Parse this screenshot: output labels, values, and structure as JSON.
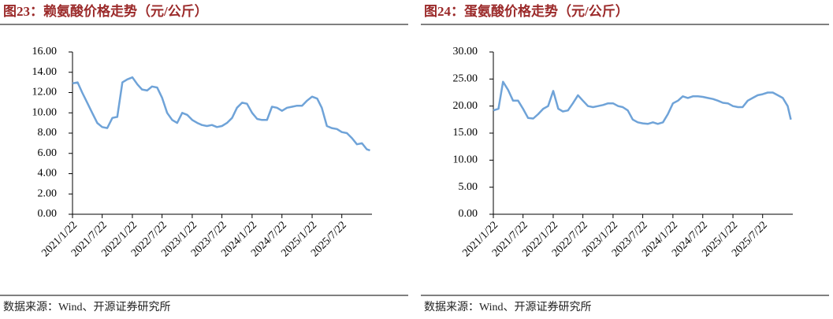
{
  "chart_data": [
    {
      "type": "line",
      "title": "图23：赖氨酸价格走势（元/公斤）",
      "source": "数据来源：Wind、开源证券研究所",
      "color": "#6fa3d8",
      "x": [
        "2021/1/22",
        "2021/2/22",
        "2021/3/22",
        "2021/4/22",
        "2021/5/22",
        "2021/6/22",
        "2021/7/22",
        "2021/8/22",
        "2021/9/22",
        "2021/10/22",
        "2021/11/22",
        "2021/12/22",
        "2022/1/22",
        "2022/2/22",
        "2022/3/22",
        "2022/4/22",
        "2022/5/22",
        "2022/6/22",
        "2022/7/22",
        "2022/8/22",
        "2022/9/22",
        "2022/10/22",
        "2022/11/22",
        "2022/12/22",
        "2023/1/22",
        "2023/2/22",
        "2023/3/22",
        "2023/4/22",
        "2023/5/22",
        "2023/6/22",
        "2023/7/22",
        "2023/8/22",
        "2023/9/22",
        "2023/10/22",
        "2023/11/22",
        "2023/12/22",
        "2024/1/22",
        "2024/2/22",
        "2024/3/22",
        "2024/4/22",
        "2024/5/22",
        "2024/6/22",
        "2024/7/22",
        "2024/8/22",
        "2024/9/22",
        "2024/10/22",
        "2024/11/22",
        "2024/12/22",
        "2025/1/22",
        "2025/2/22",
        "2025/3/22",
        "2025/4/22",
        "2025/5/22",
        "2025/6/22",
        "2025/7/22",
        "2025/8/22",
        "2025/9/22",
        "2025/10/22",
        "2025/11/22",
        "2025/12/22",
        "2026/1/10"
      ],
      "values": [
        12.9,
        13.0,
        12.0,
        11.0,
        10.0,
        9.0,
        8.6,
        8.5,
        9.5,
        9.6,
        13.0,
        13.3,
        13.5,
        12.8,
        12.3,
        12.2,
        12.6,
        12.5,
        11.5,
        10.0,
        9.3,
        9.0,
        10.0,
        9.8,
        9.3,
        9.0,
        8.8,
        8.7,
        8.8,
        8.6,
        8.7,
        9.0,
        9.5,
        10.5,
        11.0,
        10.9,
        10.0,
        9.4,
        9.3,
        9.3,
        10.6,
        10.5,
        10.2,
        10.5,
        10.6,
        10.7,
        10.7,
        11.2,
        11.6,
        11.4,
        10.5,
        8.7,
        8.5,
        8.4,
        8.1,
        8.0,
        7.5,
        6.9,
        7.0,
        6.4,
        6.3
      ],
      "xlim": [
        "2021/1/22",
        "2026/1/22"
      ],
      "xticks": [
        "2021/1/22",
        "2021/7/22",
        "2022/1/22",
        "2022/7/22",
        "2023/1/22",
        "2023/7/22",
        "2024/1/22",
        "2024/7/22",
        "2025/1/22",
        "2025/7/22"
      ],
      "ylim": [
        0,
        16
      ],
      "yticks": [
        {
          "value": 0,
          "label": "0.00"
        },
        {
          "value": 2,
          "label": "2.00"
        },
        {
          "value": 4,
          "label": "4.00"
        },
        {
          "value": 6,
          "label": "6.00"
        },
        {
          "value": 8,
          "label": "8.00"
        },
        {
          "value": 10,
          "label": "10.00"
        },
        {
          "value": 12,
          "label": "12.00"
        },
        {
          "value": 14,
          "label": "14.00"
        },
        {
          "value": 16,
          "label": "16.00"
        }
      ]
    },
    {
      "type": "line",
      "title": "图24：蛋氨酸价格走势（元/公斤）",
      "source": "数据来源：Wind、开源证券研究所",
      "color": "#6fa3d8",
      "x": [
        "2021/1/22",
        "2021/2/22",
        "2021/3/22",
        "2021/4/22",
        "2021/5/22",
        "2021/6/22",
        "2021/7/22",
        "2021/8/22",
        "2021/9/22",
        "2021/10/22",
        "2021/11/22",
        "2021/12/22",
        "2022/1/22",
        "2022/2/22",
        "2022/3/22",
        "2022/4/22",
        "2022/5/22",
        "2022/6/22",
        "2022/7/22",
        "2022/8/22",
        "2022/9/22",
        "2022/10/22",
        "2022/11/22",
        "2022/12/22",
        "2023/1/22",
        "2023/2/22",
        "2023/3/22",
        "2023/4/22",
        "2023/5/22",
        "2023/6/22",
        "2023/7/22",
        "2023/8/22",
        "2023/9/22",
        "2023/10/22",
        "2023/11/22",
        "2023/12/22",
        "2024/1/22",
        "2024/2/22",
        "2024/3/22",
        "2024/4/22",
        "2024/5/22",
        "2024/6/22",
        "2024/7/22",
        "2024/8/22",
        "2024/9/22",
        "2024/10/22",
        "2024/11/22",
        "2024/12/22",
        "2025/1/22",
        "2025/2/22",
        "2025/3/22",
        "2025/4/22",
        "2025/5/22",
        "2025/6/22",
        "2025/7/22",
        "2025/8/22",
        "2025/9/22",
        "2025/10/22",
        "2025/11/22",
        "2025/12/22",
        "2026/1/10"
      ],
      "values": [
        19.2,
        19.5,
        24.5,
        23.0,
        21.0,
        21.0,
        19.5,
        17.8,
        17.7,
        18.5,
        19.5,
        20.0,
        22.8,
        19.5,
        19.0,
        19.2,
        20.5,
        22.0,
        21.0,
        20.0,
        19.8,
        20.0,
        20.2,
        20.5,
        20.5,
        20.0,
        19.8,
        19.2,
        17.5,
        17.0,
        16.8,
        16.7,
        17.0,
        16.7,
        17.0,
        18.5,
        20.5,
        21.0,
        21.8,
        21.5,
        21.8,
        21.8,
        21.7,
        21.5,
        21.3,
        21.0,
        20.6,
        20.5,
        20.0,
        19.8,
        19.8,
        21.0,
        21.5,
        22.0,
        22.2,
        22.5,
        22.5,
        22.0,
        21.5,
        20.0,
        17.5
      ],
      "xlim": [
        "2021/1/22",
        "2026/1/22"
      ],
      "xticks": [
        "2021/1/22",
        "2021/7/22",
        "2022/1/22",
        "2022/7/22",
        "2023/1/22",
        "2023/7/22",
        "2024/1/22",
        "2024/7/22",
        "2025/1/22",
        "2025/7/22"
      ],
      "ylim": [
        0,
        30
      ],
      "yticks": [
        {
          "value": 0,
          "label": "0.00"
        },
        {
          "value": 5,
          "label": "5.00"
        },
        {
          "value": 10,
          "label": "10.00"
        },
        {
          "value": 15,
          "label": "15.00"
        },
        {
          "value": 20,
          "label": "20.00"
        },
        {
          "value": 25,
          "label": "25.00"
        },
        {
          "value": 30,
          "label": "30.00"
        }
      ]
    }
  ]
}
